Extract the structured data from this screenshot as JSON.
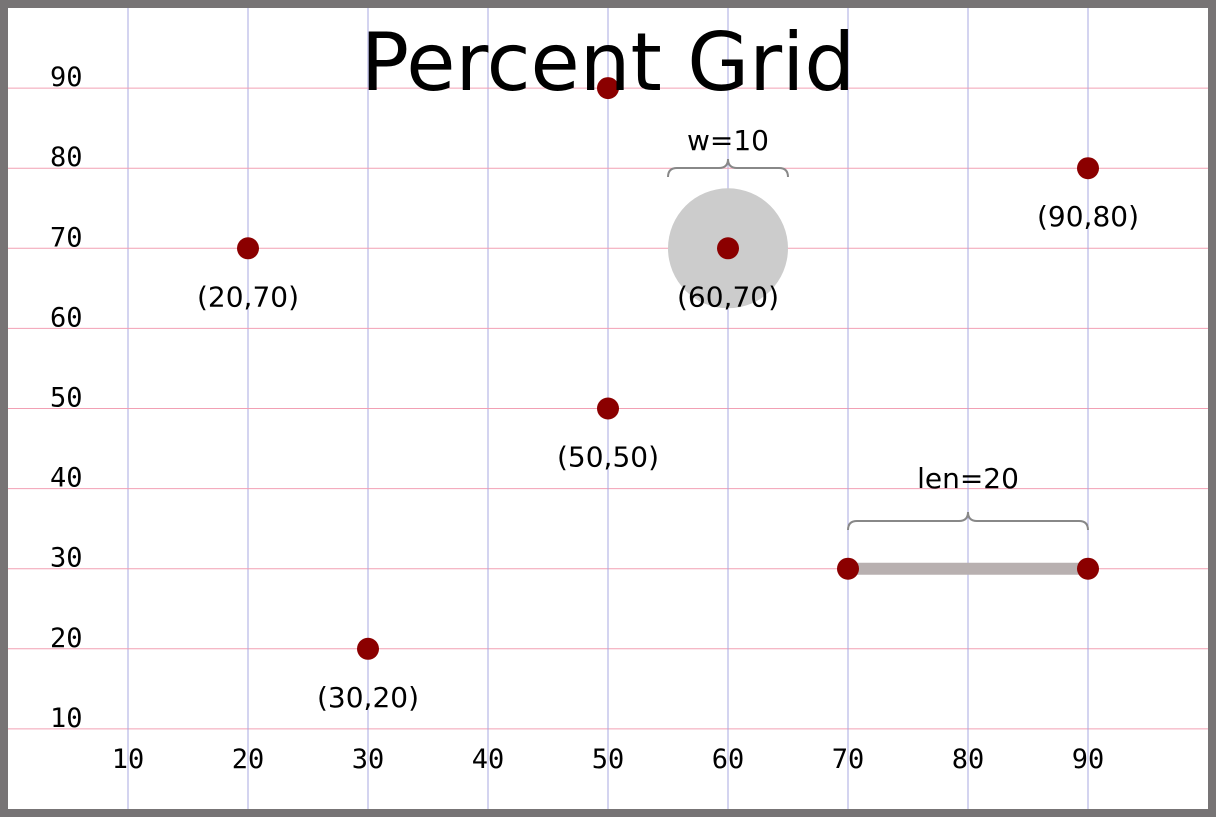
{
  "title": "Percent Grid",
  "colors": {
    "frame": "#777475",
    "background": "#ffffff",
    "h_grid": "#f2a0b4",
    "v_grid": "#a8a8e0",
    "point": "#8b0000",
    "highlight": "#cccccc",
    "bracket": "#888888"
  },
  "axes": {
    "x_ticks": [
      "10",
      "20",
      "30",
      "40",
      "50",
      "60",
      "70",
      "80",
      "90"
    ],
    "y_ticks": [
      "90",
      "80",
      "70",
      "60",
      "50",
      "40",
      "30",
      "20",
      "10"
    ]
  },
  "points": [
    {
      "x": 50,
      "y": 90,
      "label": ""
    },
    {
      "x": 90,
      "y": 80,
      "label": "(90,80)"
    },
    {
      "x": 20,
      "y": 70,
      "label": "(20,70)"
    },
    {
      "x": 60,
      "y": 70,
      "label": "(60,70)"
    },
    {
      "x": 50,
      "y": 50,
      "label": "(50,50)"
    },
    {
      "x": 70,
      "y": 30,
      "label": ""
    },
    {
      "x": 90,
      "y": 30,
      "label": ""
    },
    {
      "x": 30,
      "y": 20,
      "label": "(30,20)"
    }
  ],
  "highlight_circle": {
    "cx": 60,
    "cy": 70,
    "diameter": 10
  },
  "segment": {
    "x1": 70,
    "y1": 30,
    "x2": 90,
    "y2": 30
  },
  "annotations": {
    "width_label": "w=10",
    "length_label": "len=20"
  }
}
